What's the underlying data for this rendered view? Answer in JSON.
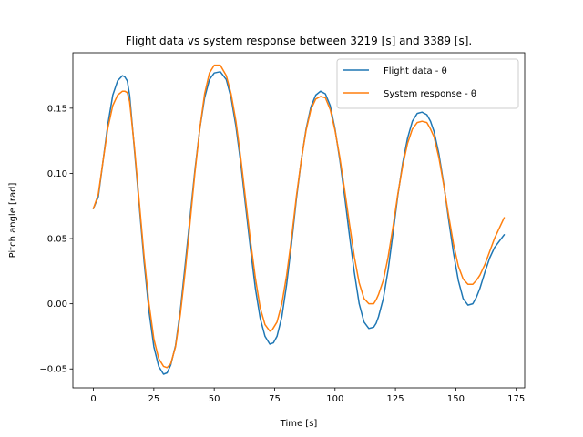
{
  "chart_data": {
    "type": "line",
    "title": "Flight data vs system response between 3219 [s] and 3389 [s].",
    "xlabel": "Time [s]",
    "ylabel": "Pitch angle [rad]",
    "xlim": [
      -8.5,
      178.5
    ],
    "ylim": [
      -0.0645,
      0.1925
    ],
    "xticks": [
      0,
      25,
      50,
      75,
      100,
      125,
      150,
      175
    ],
    "yticks": [
      -0.05,
      0.0,
      0.05,
      0.1,
      0.15
    ],
    "xtick_labels": [
      "0",
      "25",
      "50",
      "75",
      "100",
      "125",
      "150",
      "175"
    ],
    "ytick_labels": [
      "−0.05",
      "0.00",
      "0.05",
      "0.10",
      "0.15"
    ],
    "grid": false,
    "legend_position": "top-right",
    "series": [
      {
        "name": "Flight data - θ",
        "color": "#1f77b4",
        "x": [
          0,
          2,
          4,
          6,
          8,
          10,
          12,
          13,
          14,
          15,
          17,
          19,
          21,
          23,
          25,
          27,
          29,
          30.5,
          32,
          34,
          36,
          38,
          40,
          42,
          44,
          46,
          48,
          50,
          52.5,
          55,
          57,
          59,
          61,
          63,
          65,
          67,
          69,
          71,
          73,
          74.5,
          76,
          78,
          80,
          82,
          84,
          86,
          88,
          90,
          92,
          94,
          96,
          98,
          100,
          102,
          104,
          106,
          108,
          110,
          112,
          114,
          116,
          117,
          118,
          120,
          122,
          124,
          126,
          128,
          130,
          132,
          134,
          136,
          138,
          139.5,
          141,
          143,
          145,
          147,
          149,
          151,
          153,
          155,
          157,
          158.5,
          160,
          162,
          164,
          166,
          168,
          170
        ],
        "y": [
          0.073,
          0.082,
          0.11,
          0.138,
          0.16,
          0.171,
          0.175,
          0.174,
          0.171,
          0.16,
          0.118,
          0.075,
          0.032,
          -0.006,
          -0.033,
          -0.048,
          -0.054,
          -0.053,
          -0.047,
          -0.032,
          -0.005,
          0.03,
          0.066,
          0.102,
          0.134,
          0.158,
          0.172,
          0.177,
          0.178,
          0.172,
          0.158,
          0.136,
          0.108,
          0.075,
          0.042,
          0.012,
          -0.011,
          -0.025,
          -0.031,
          -0.03,
          -0.025,
          -0.01,
          0.015,
          0.046,
          0.08,
          0.11,
          0.134,
          0.151,
          0.16,
          0.163,
          0.161,
          0.152,
          0.134,
          0.11,
          0.082,
          0.052,
          0.024,
          0.0,
          -0.014,
          -0.019,
          -0.018,
          -0.015,
          -0.01,
          0.004,
          0.026,
          0.054,
          0.083,
          0.108,
          0.127,
          0.14,
          0.146,
          0.147,
          0.145,
          0.14,
          0.132,
          0.115,
          0.092,
          0.065,
          0.039,
          0.018,
          0.004,
          -0.001,
          0.0,
          0.005,
          0.012,
          0.024,
          0.035,
          0.043,
          0.048,
          0.053
        ]
      },
      {
        "name": "System response - θ",
        "color": "#ff7f0e",
        "x": [
          0,
          2,
          4,
          6,
          8,
          10,
          12,
          13,
          14,
          15,
          17,
          19,
          21,
          23,
          25,
          27,
          29,
          30.5,
          32,
          34,
          36,
          38,
          40,
          42,
          44,
          46,
          48,
          50,
          52.5,
          55,
          57,
          59,
          61,
          63,
          65,
          67,
          69,
          71,
          73,
          74,
          76,
          78,
          80,
          82,
          84,
          86,
          88,
          90,
          92,
          94,
          96,
          98,
          100,
          102,
          104,
          106,
          108,
          110,
          112,
          114,
          116,
          117,
          118,
          120,
          122,
          124,
          126,
          128,
          130,
          132,
          134,
          136,
          138,
          139.5,
          141,
          143,
          145,
          147,
          149,
          151,
          153,
          155,
          157,
          158.5,
          160,
          162,
          164,
          166,
          168,
          170
        ],
        "y": [
          0.073,
          0.084,
          0.11,
          0.135,
          0.152,
          0.16,
          0.163,
          0.163,
          0.162,
          0.155,
          0.12,
          0.078,
          0.036,
          0.0,
          -0.027,
          -0.042,
          -0.048,
          -0.049,
          -0.046,
          -0.033,
          -0.008,
          0.025,
          0.062,
          0.1,
          0.134,
          0.161,
          0.177,
          0.183,
          0.183,
          0.175,
          0.161,
          0.14,
          0.112,
          0.08,
          0.048,
          0.02,
          -0.003,
          -0.016,
          -0.021,
          -0.02,
          -0.014,
          0.0,
          0.022,
          0.05,
          0.082,
          0.11,
          0.133,
          0.149,
          0.157,
          0.159,
          0.158,
          0.149,
          0.133,
          0.112,
          0.087,
          0.061,
          0.036,
          0.016,
          0.004,
          0.0,
          0.0,
          0.003,
          0.007,
          0.018,
          0.036,
          0.059,
          0.084,
          0.106,
          0.123,
          0.134,
          0.139,
          0.14,
          0.139,
          0.134,
          0.128,
          0.112,
          0.091,
          0.068,
          0.046,
          0.029,
          0.019,
          0.015,
          0.015,
          0.018,
          0.022,
          0.03,
          0.04,
          0.05,
          0.058,
          0.066
        ]
      }
    ]
  }
}
